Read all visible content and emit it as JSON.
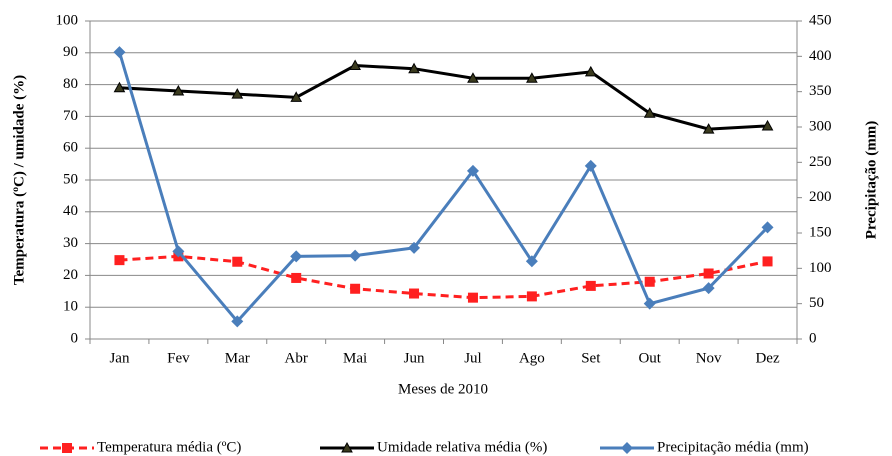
{
  "chart_data": {
    "type": "line",
    "x_label": "Meses de 2010",
    "y_label": "Temperatura (ºC) / umidade (%)",
    "y2_label": "Precipitação (mm)",
    "categories": [
      "Jan",
      "Fev",
      "Mar",
      "Abr",
      "Mai",
      "Jun",
      "Jul",
      "Ago",
      "Set",
      "Out",
      "Nov",
      "Dez"
    ],
    "series": [
      {
        "name": "Temperatura média (ºC)",
        "color": "#ff2020",
        "dash": true,
        "marker": "square",
        "values": [
          24.8,
          26,
          24.3,
          19.2,
          15.8,
          14.3,
          13,
          13.4,
          16.7,
          18,
          20.6,
          24.4
        ]
      },
      {
        "name": "Umidade relativa média (%)",
        "color": "#000000",
        "dash": false,
        "marker": "triangle",
        "values": [
          79,
          78,
          77,
          76,
          86,
          85,
          82,
          82,
          84,
          71,
          66,
          67
        ]
      },
      {
        "name": "Precipitação média (mm)",
        "color": "#4a7ebb",
        "dash": false,
        "marker": "diamond",
        "axis": "y2",
        "values": [
          406,
          124,
          25,
          117,
          118,
          129,
          238,
          110,
          245,
          50,
          72,
          158
        ]
      }
    ],
    "ylim": [
      0,
      100
    ],
    "yticks": [
      0,
      10,
      20,
      30,
      40,
      50,
      60,
      70,
      80,
      90,
      100
    ],
    "y2lim": [
      0,
      450
    ],
    "y2ticks": [
      0,
      50,
      100,
      150,
      200,
      250,
      300,
      350,
      400,
      450
    ],
    "grid": true,
    "legend": "bottom"
  }
}
